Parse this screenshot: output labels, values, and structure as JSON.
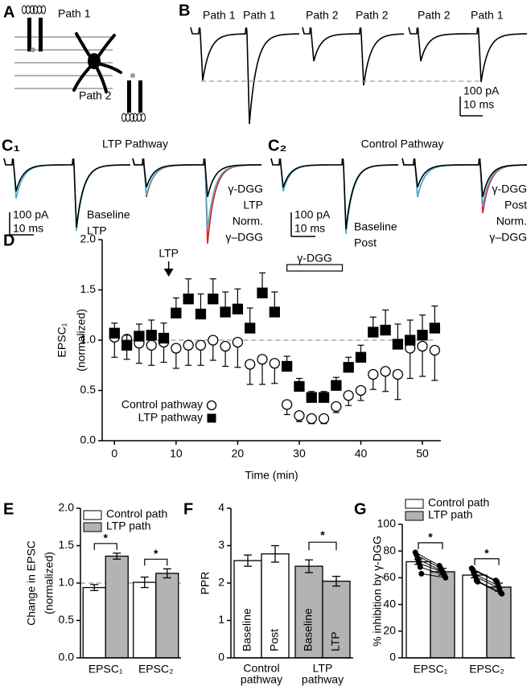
{
  "panel_a": {
    "label": "A",
    "path_labels": [
      "Path 1",
      "Path 2"
    ]
  },
  "panel_b": {
    "label": "B",
    "trace_labels": [
      "Path 1",
      "Path 1",
      "Path 2",
      "Path 2",
      "Path 2",
      "Path 1"
    ],
    "scale_bar": [
      "100 pA",
      "10 ms"
    ]
  },
  "panel_c1": {
    "label": "C₁",
    "title": "LTP Pathway",
    "scale_bar": [
      "100 pA",
      "10 ms"
    ],
    "legend_left": [
      {
        "name": "Baseline",
        "color": "#000000"
      },
      {
        "name": "LTP",
        "color": "#3cb4d6"
      }
    ],
    "legend_right": [
      {
        "name": "γ-DGG",
        "color": "#000000"
      },
      {
        "name": "LTP",
        "color": "#3cb4d6"
      },
      {
        "name": "Norm.",
        "color": "#e8141c"
      },
      {
        "name": "γ–DGG",
        "color": "#e8141c"
      }
    ]
  },
  "panel_c2": {
    "label": "C₂",
    "title": "Control Pathway",
    "scale_bar": [
      "100 pA",
      "10 ms"
    ],
    "legend_left": [
      {
        "name": "Baseline",
        "color": "#000000"
      },
      {
        "name": "Post",
        "color": "#3cb4d6"
      }
    ],
    "legend_right": [
      {
        "name": "γ-DGG",
        "color": "#000000"
      },
      {
        "name": "Post",
        "color": "#3cb4d6"
      },
      {
        "name": "Norm.",
        "color": "#e8141c"
      },
      {
        "name": "γ–DGG",
        "color": "#e8141c"
      }
    ]
  },
  "chart_data": [
    {
      "type": "scatter",
      "label": "D",
      "xlabel": "Time (min)",
      "ylabel": [
        "EPSC₁",
        "(normalized)"
      ],
      "xlim": [
        -2,
        53
      ],
      "xticks": [
        0,
        10,
        20,
        30,
        40,
        50
      ],
      "ylim": [
        0,
        2
      ],
      "yticks": [
        {
          "value": 0,
          "label": "0.0"
        },
        {
          "value": 0.5,
          "label": "0.5"
        },
        {
          "value": 1,
          "label": "1.0"
        },
        {
          "value": 1.5,
          "label": "1.5"
        },
        {
          "value": 2,
          "label": "2.0"
        }
      ],
      "reference_line": 1,
      "legend": "lower left",
      "x": [
        0,
        2,
        4,
        6,
        8,
        10,
        12,
        14,
        16,
        18,
        20,
        22,
        24,
        26,
        28,
        30,
        32,
        34,
        36,
        38,
        40,
        42,
        44,
        46,
        48,
        50,
        52
      ],
      "series": [
        {
          "name": "Control pathway",
          "marker": "circle",
          "color": "#ffffff",
          "error_direction": "down",
          "values": [
            1.03,
            1.01,
            0.97,
            0.95,
            0.98,
            0.92,
            0.95,
            0.95,
            1.0,
            0.94,
            0.98,
            0.76,
            0.81,
            0.77,
            0.36,
            0.25,
            0.22,
            0.22,
            0.34,
            0.45,
            0.5,
            0.66,
            0.69,
            0.66,
            0.92,
            0.94,
            0.9
          ],
          "errors": [
            0.2,
            0.2,
            0.2,
            0.2,
            0.2,
            0.2,
            0.2,
            0.2,
            0.2,
            0.2,
            0.25,
            0.2,
            0.25,
            0.2,
            0.1,
            0.06,
            0.05,
            0.05,
            0.06,
            0.1,
            0.1,
            0.15,
            0.2,
            0.25,
            0.3,
            0.3,
            0.3
          ]
        },
        {
          "name": "LTP pathway",
          "marker": "square",
          "color": "#000000",
          "error_direction": "up",
          "values": [
            1.07,
            0.95,
            1.04,
            1.05,
            1.02,
            1.27,
            1.41,
            1.26,
            1.41,
            1.28,
            1.31,
            1.12,
            1.47,
            1.28,
            0.74,
            0.54,
            0.43,
            0.43,
            0.55,
            0.73,
            0.83,
            1.08,
            1.1,
            0.96,
            1.0,
            1.05,
            1.12
          ],
          "errors": [
            0.1,
            0.1,
            0.12,
            0.15,
            0.15,
            0.15,
            0.2,
            0.2,
            0.2,
            0.2,
            0.2,
            0.2,
            0.2,
            0.2,
            0.1,
            0.08,
            0.06,
            0.06,
            0.08,
            0.1,
            0.12,
            0.15,
            0.2,
            0.2,
            0.2,
            0.2,
            0.22
          ]
        }
      ],
      "annotations": [
        {
          "text": "LTP",
          "x": 8.8,
          "style": "arrow"
        },
        {
          "text": "γ-DGG",
          "x": [
            28,
            37
          ],
          "style": "bar"
        }
      ]
    },
    {
      "type": "bar",
      "label": "E",
      "ylabel": [
        "Change in EPSC",
        "(normalized)"
      ],
      "categories": [
        "EPSC₁",
        "EPSC₂"
      ],
      "ylim": [
        0,
        2
      ],
      "yticks": [
        {
          "value": 0,
          "label": "0.0"
        },
        {
          "value": 0.5,
          "label": "0.5"
        },
        {
          "value": 1,
          "label": "1.0"
        },
        {
          "value": 1.5,
          "label": "1.5"
        },
        {
          "value": 2,
          "label": "2.0"
        }
      ],
      "reference_line": 1,
      "legend": "upper left",
      "series": [
        {
          "name": "Control path",
          "color": "#ffffff",
          "values": [
            0.94,
            1.01
          ],
          "errors": [
            0.04,
            0.07
          ]
        },
        {
          "name": "LTP path",
          "color": "#b3b3b3",
          "values": [
            1.36,
            1.13
          ],
          "errors": [
            0.04,
            0.06
          ]
        }
      ],
      "significance": [
        "*",
        "*"
      ]
    },
    {
      "type": "grouped_bar",
      "label": "F",
      "ylabel": "PPR",
      "ylim": [
        0,
        4
      ],
      "yticks": [
        0,
        1,
        2,
        3,
        4
      ],
      "groups": [
        {
          "label": [
            "Control",
            "pathway"
          ],
          "color": "#ffffff",
          "bars": [
            {
              "label": "Baseline",
              "value": 2.6,
              "error": 0.15
            },
            {
              "label": "Post",
              "value": 2.78,
              "error": 0.22
            }
          ]
        },
        {
          "label": [
            "LTP",
            "pathway"
          ],
          "color": "#b3b3b3",
          "bars": [
            {
              "label": "Baseline",
              "value": 2.45,
              "error": 0.17
            },
            {
              "label": "LTP",
              "value": 2.05,
              "error": 0.13
            }
          ],
          "significance": "*"
        }
      ]
    },
    {
      "type": "bar",
      "label": "G",
      "ylabel": "% inhibition by γ-DGG",
      "categories": [
        "EPSC₁",
        "EPSC₂"
      ],
      "ylim": [
        0,
        100
      ],
      "yticks": [
        0,
        20,
        40,
        60,
        80,
        100
      ],
      "legend": "upper left",
      "series": [
        {
          "name": "Control path",
          "color": "#ffffff",
          "values": [
            72,
            62
          ],
          "errors": [
            2,
            2
          ],
          "points": [
            [
              79,
              77,
              74,
              71,
              68,
              63
            ],
            [
              67,
              66,
              63,
              61,
              58,
              57
            ]
          ]
        },
        {
          "name": "LTP path",
          "color": "#b3b3b3",
          "values": [
            64.5,
            53
          ],
          "errors": [
            2.5,
            3
          ],
          "points": [
            [
              69,
              67,
              65,
              64,
              62,
              60
            ],
            [
              58,
              57,
              54,
              52,
              49,
              48
            ]
          ]
        }
      ],
      "significance": [
        "*",
        "*"
      ]
    }
  ]
}
